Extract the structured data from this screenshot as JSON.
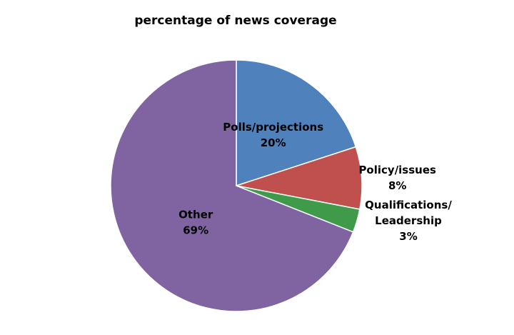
{
  "chart_data": {
    "type": "pie",
    "title": "percentage of news coverage",
    "legend": "none",
    "slices": [
      {
        "label": "Polls/projections",
        "label_lines": [
          "Polls/projections"
        ],
        "value": 20,
        "value_label": "20%",
        "color": "#4F81BD"
      },
      {
        "label": "Policy/issues",
        "label_lines": [
          "Policy/issues"
        ],
        "value": 8,
        "value_label": "8%",
        "color": "#C0504D"
      },
      {
        "label": "Qualifications/ Leadership",
        "label_lines": [
          "Qualifications/",
          "Leadership"
        ],
        "value": 3,
        "value_label": "3%",
        "color": "#3F9A4A"
      },
      {
        "label": "Other",
        "label_lines": [
          "Other"
        ],
        "value": 69,
        "value_label": "69%",
        "color": "#8064A2"
      }
    ]
  }
}
